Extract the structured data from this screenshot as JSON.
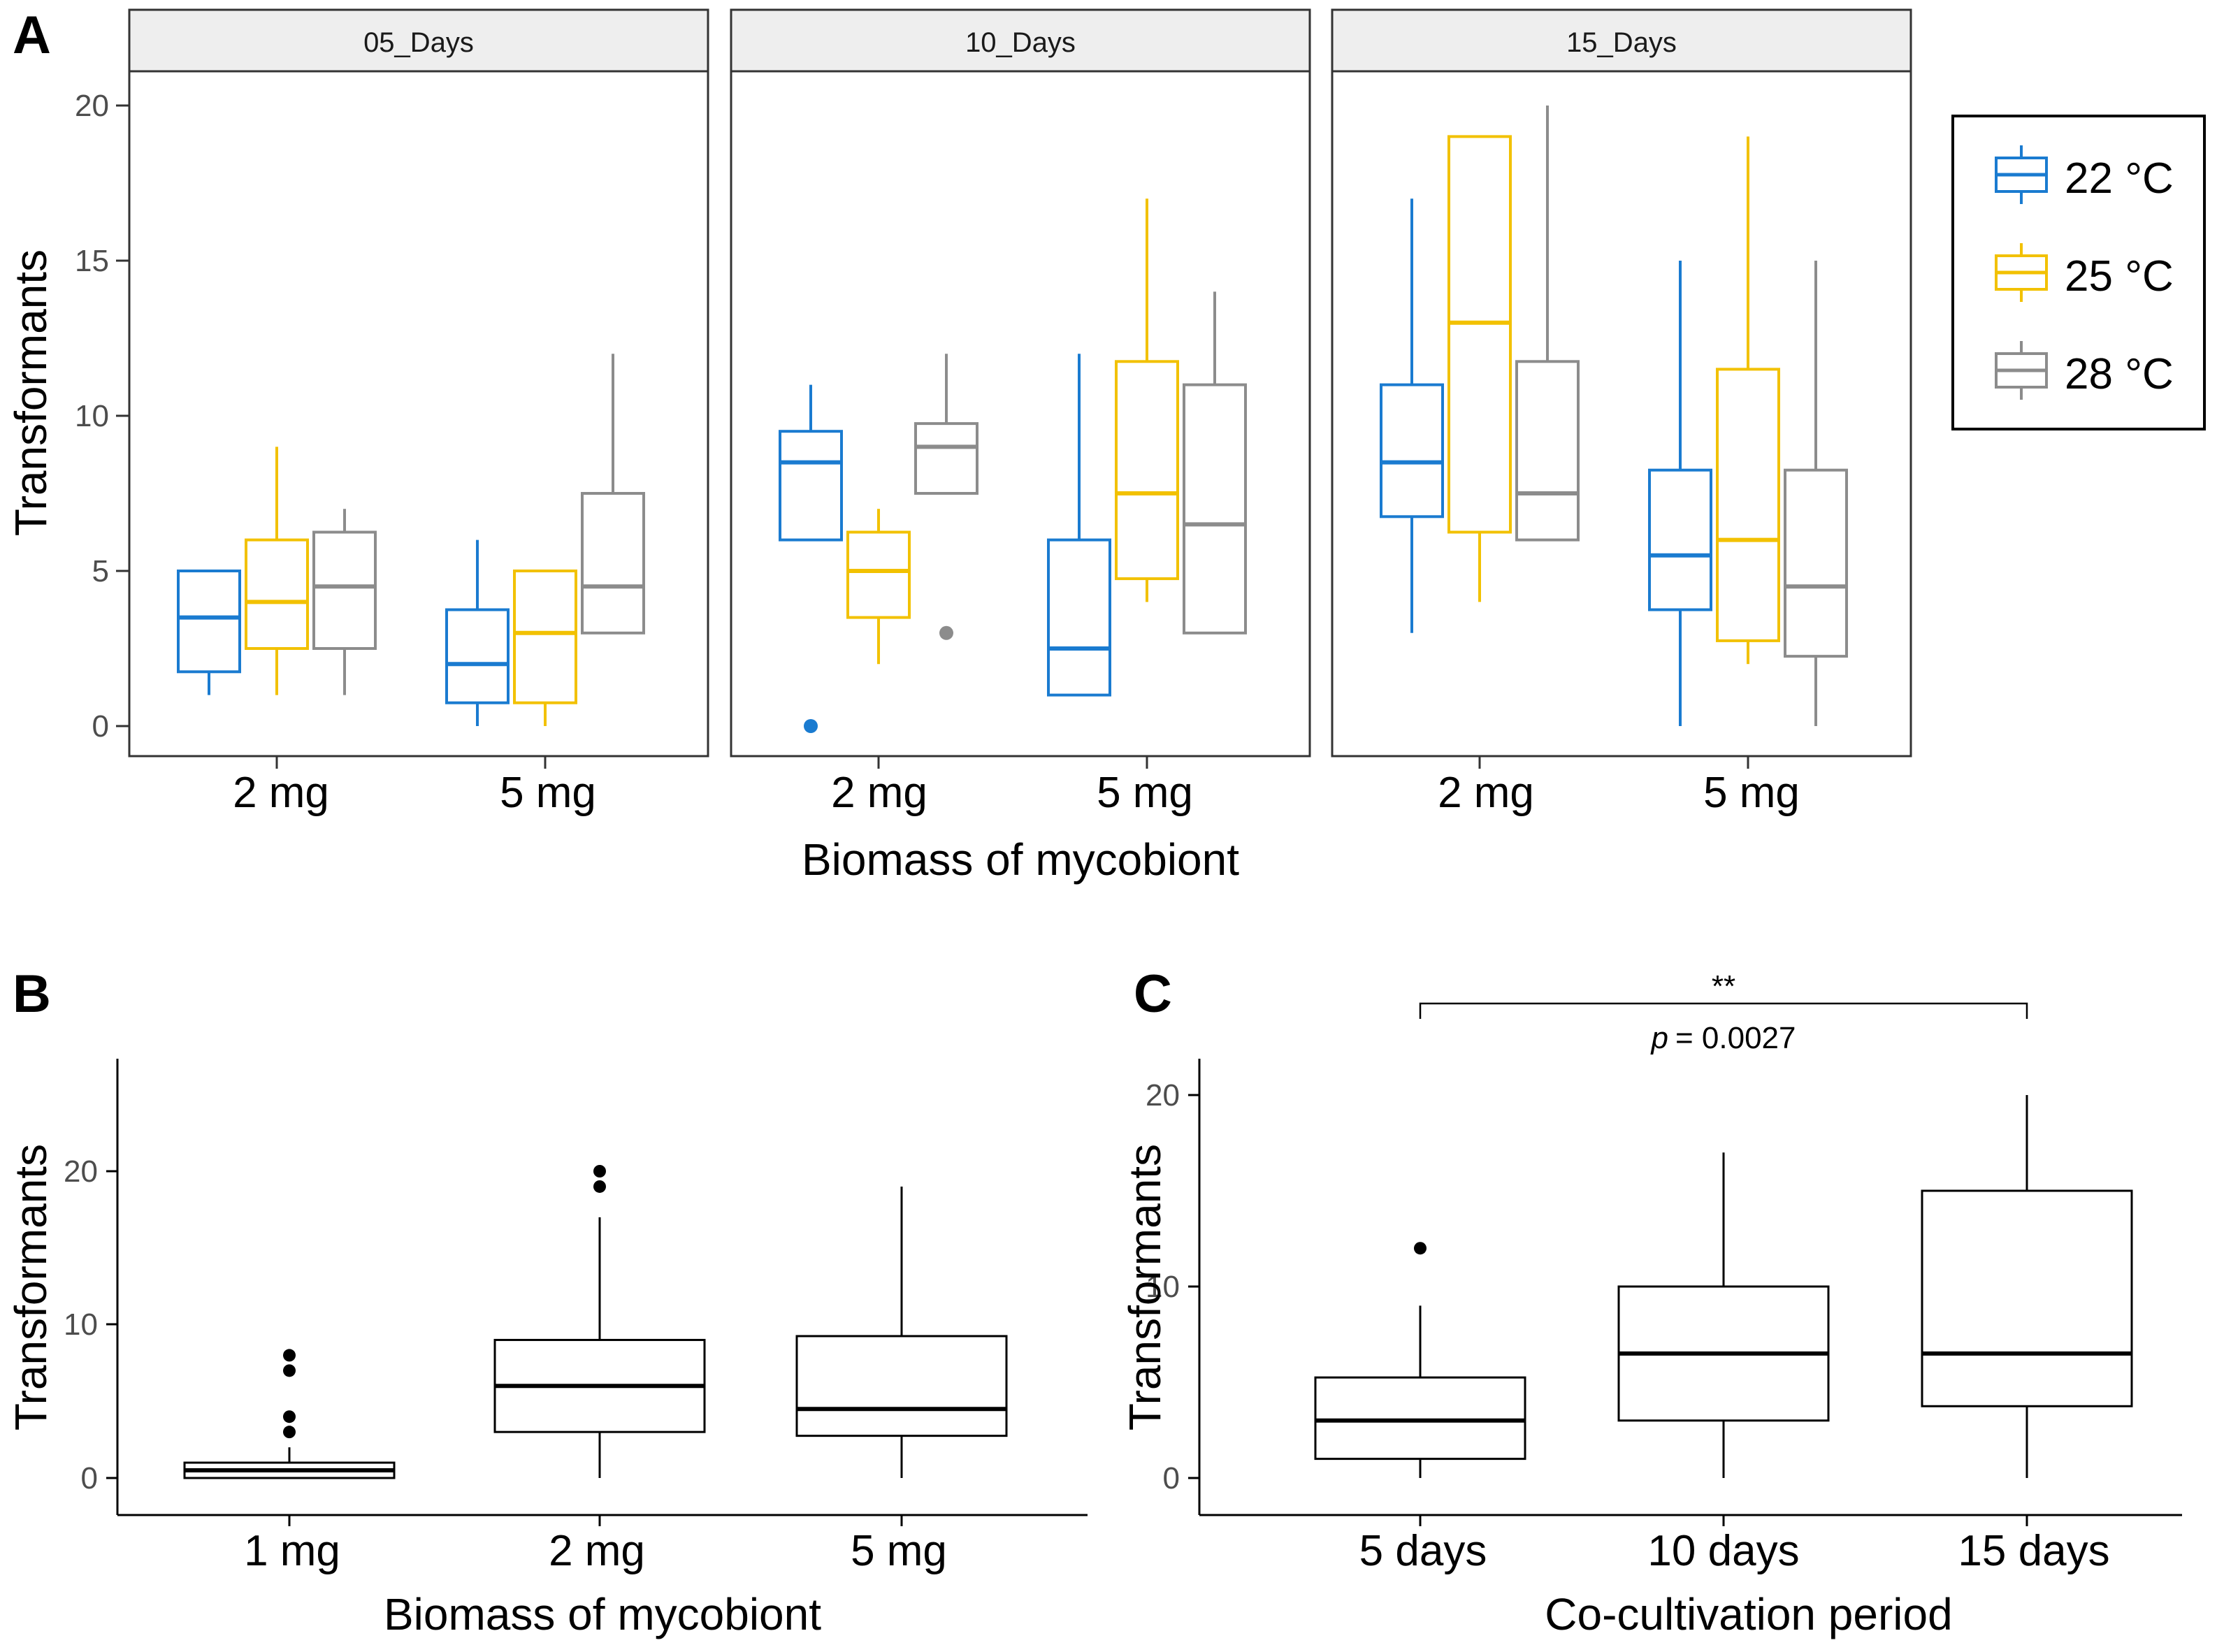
{
  "colors": {
    "c22": "#1a7bd0",
    "c25": "#f2c100",
    "c28": "#8c8c8c",
    "black": "#000000",
    "strip_bg": "#eeeeee"
  },
  "legend": {
    "entries": [
      {
        "key": "c22",
        "label": "22 °C"
      },
      {
        "key": "c25",
        "label": "25 °C"
      },
      {
        "key": "c28",
        "label": "28 °C"
      }
    ]
  },
  "chart_data": [
    {
      "panel": "A",
      "type": "boxplot",
      "ylabel": "Transformants",
      "xlabel": "Biomass of mycobiont",
      "ylim": [
        -1,
        22
      ],
      "yticks": [
        0,
        5,
        10,
        15,
        20
      ],
      "categories": [
        "2 mg",
        "5 mg"
      ],
      "facets": [
        {
          "label": "05_Days",
          "groups": [
            {
              "category": "2 mg",
              "series": "c22",
              "q1": 1.75,
              "median": 3.5,
              "q3": 5,
              "lo": 1,
              "hi": 5,
              "outliers": []
            },
            {
              "category": "2 mg",
              "series": "c25",
              "q1": 2.5,
              "median": 4,
              "q3": 6,
              "lo": 1,
              "hi": 9,
              "outliers": []
            },
            {
              "category": "2 mg",
              "series": "c28",
              "q1": 2.5,
              "median": 4.5,
              "q3": 6.25,
              "lo": 1,
              "hi": 7,
              "outliers": []
            },
            {
              "category": "5 mg",
              "series": "c22",
              "q1": 0.75,
              "median": 2,
              "q3": 3.75,
              "lo": 0,
              "hi": 6,
              "outliers": []
            },
            {
              "category": "5 mg",
              "series": "c25",
              "q1": 0.75,
              "median": 3,
              "q3": 5,
              "lo": 0,
              "hi": 5,
              "outliers": []
            },
            {
              "category": "5 mg",
              "series": "c28",
              "q1": 3,
              "median": 4.5,
              "q3": 7.5,
              "lo": 3,
              "hi": 12,
              "outliers": []
            }
          ]
        },
        {
          "label": "10_Days",
          "groups": [
            {
              "category": "2 mg",
              "series": "c22",
              "q1": 6,
              "median": 8.5,
              "q3": 9.5,
              "lo": 6,
              "hi": 11,
              "outliers": [
                0
              ]
            },
            {
              "category": "2 mg",
              "series": "c25",
              "q1": 3.5,
              "median": 5,
              "q3": 6.25,
              "lo": 2,
              "hi": 7,
              "outliers": []
            },
            {
              "category": "2 mg",
              "series": "c28",
              "q1": 7.5,
              "median": 9,
              "q3": 9.75,
              "lo": 7.5,
              "hi": 12,
              "outliers": [
                3
              ]
            },
            {
              "category": "5 mg",
              "series": "c22",
              "q1": 1,
              "median": 2.5,
              "q3": 6,
              "lo": 1,
              "hi": 12,
              "outliers": []
            },
            {
              "category": "5 mg",
              "series": "c25",
              "q1": 4.75,
              "median": 7.5,
              "q3": 11.75,
              "lo": 4,
              "hi": 17,
              "outliers": []
            },
            {
              "category": "5 mg",
              "series": "c28",
              "q1": 3,
              "median": 6.5,
              "q3": 11,
              "lo": 3,
              "hi": 14,
              "outliers": []
            }
          ]
        },
        {
          "label": "15_Days",
          "groups": [
            {
              "category": "2 mg",
              "series": "c22",
              "q1": 6.75,
              "median": 8.5,
              "q3": 11,
              "lo": 3,
              "hi": 17,
              "outliers": []
            },
            {
              "category": "2 mg",
              "series": "c25",
              "q1": 6.25,
              "median": 13,
              "q3": 19,
              "lo": 4,
              "hi": 19,
              "outliers": []
            },
            {
              "category": "2 mg",
              "series": "c28",
              "q1": 6,
              "median": 7.5,
              "q3": 11.75,
              "lo": 6,
              "hi": 20,
              "outliers": []
            },
            {
              "category": "5 mg",
              "series": "c22",
              "q1": 3.75,
              "median": 5.5,
              "q3": 8.25,
              "lo": 0,
              "hi": 15,
              "outliers": []
            },
            {
              "category": "5 mg",
              "series": "c25",
              "q1": 2.75,
              "median": 6,
              "q3": 11.5,
              "lo": 2,
              "hi": 19,
              "outliers": []
            },
            {
              "category": "5 mg",
              "series": "c28",
              "q1": 2.25,
              "median": 4.5,
              "q3": 8.25,
              "lo": 0,
              "hi": 15,
              "outliers": []
            }
          ]
        }
      ]
    },
    {
      "panel": "B",
      "type": "boxplot",
      "ylabel": "Transformants",
      "xlabel": "Biomass of mycobiont",
      "ylim": [
        -2.5,
        27
      ],
      "yticks": [
        0,
        10,
        20
      ],
      "categories": [
        "1 mg",
        "2 mg",
        "5 mg"
      ],
      "groups": [
        {
          "category": "1 mg",
          "q1": 0,
          "median": 0.5,
          "q3": 1,
          "lo": 0,
          "hi": 2,
          "outliers": [
            3,
            4,
            7,
            8
          ]
        },
        {
          "category": "2 mg",
          "q1": 3,
          "median": 6,
          "q3": 9,
          "lo": 0,
          "hi": 17,
          "outliers": [
            19,
            20
          ]
        },
        {
          "category": "5 mg",
          "q1": 2.75,
          "median": 4.5,
          "q3": 9.25,
          "lo": 0,
          "hi": 19,
          "outliers": []
        }
      ]
    },
    {
      "panel": "C",
      "type": "boxplot",
      "ylabel": "Transformants",
      "xlabel": "Co-cultivation period",
      "ylim": [
        -2,
        22
      ],
      "yticks": [
        0,
        10,
        20
      ],
      "categories": [
        "5 days",
        "10 days",
        "15 days"
      ],
      "groups": [
        {
          "category": "5 days",
          "q1": 1,
          "median": 3,
          "q3": 5.25,
          "lo": 0,
          "hi": 9,
          "outliers": [
            12
          ]
        },
        {
          "category": "10 days",
          "q1": 3,
          "median": 6.5,
          "q3": 10,
          "lo": 0,
          "hi": 17,
          "outliers": []
        },
        {
          "category": "15 days",
          "q1": 3.75,
          "median": 6.5,
          "q3": 15,
          "lo": 0,
          "hi": 20,
          "outliers": []
        }
      ],
      "annotation": {
        "from": "5 days",
        "to": "15 days",
        "stars": "**",
        "p_label": "p",
        "p_value": "= 0.0027"
      }
    }
  ]
}
